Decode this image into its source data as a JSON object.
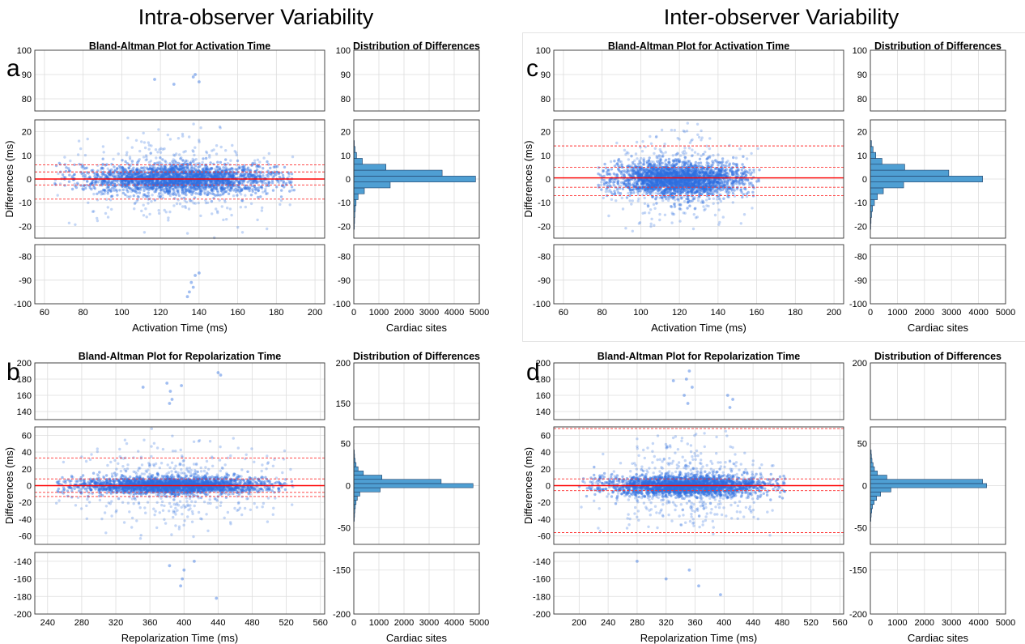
{
  "page": {
    "intra_title": "Intra-observer Variability",
    "inter_title": "Inter-observer Variability"
  },
  "colors": {
    "points": "#2f6fe0",
    "mean_line": "#ff0000",
    "limit_line": "#ff3030",
    "hist_fill": "#4f9fd3",
    "grid": "#dddddd"
  },
  "chart_data": [
    {
      "panel": "a",
      "type": "scatter",
      "title": "Bland-Altman Plot for Activation Time",
      "xlabel": "Activation Time (ms)",
      "ylabel": "Differences (ms)",
      "xlim": [
        55,
        205
      ],
      "xticks": [
        60,
        80,
        100,
        120,
        140,
        160,
        180,
        200
      ],
      "y_segments": [
        {
          "ylim": [
            75,
            100
          ],
          "ticks": [
            80,
            90,
            100
          ]
        },
        {
          "ylim": [
            -25,
            25
          ],
          "ticks": [
            -20,
            -10,
            0,
            10,
            20
          ]
        },
        {
          "ylim": [
            -100,
            -75
          ],
          "ticks": [
            -100,
            -90,
            -80
          ]
        }
      ],
      "mean_line": 0,
      "limit_lines": [
        6,
        3,
        -2.5,
        -8.5
      ],
      "point_cloud": {
        "x_range": [
          65,
          190
        ],
        "x_center": 130,
        "core_halfwidth": 3
      },
      "outliers": [
        [
          138,
          90
        ],
        [
          140,
          87
        ],
        [
          127,
          86
        ],
        [
          117,
          88
        ],
        [
          137,
          89
        ],
        [
          136,
          -91
        ],
        [
          138,
          -88
        ],
        [
          140,
          -87
        ],
        [
          135,
          -95
        ],
        [
          134,
          -97
        ],
        [
          137,
          -93
        ]
      ],
      "histogram": {
        "title": "Distribution of Differences",
        "xlabel": "Cardiac sites",
        "xlim": [
          0,
          5000
        ],
        "xticks": [
          0,
          1000,
          2000,
          3000,
          4000,
          5000
        ],
        "bin_centers": [
          -20,
          -17.5,
          -15,
          -12.5,
          -10,
          -7.5,
          -5,
          -2.5,
          0,
          2.5,
          5,
          7.5,
          10,
          12.5,
          15
        ],
        "counts": [
          20,
          30,
          40,
          60,
          90,
          170,
          420,
          1450,
          4850,
          3520,
          1280,
          340,
          110,
          50,
          20
        ]
      }
    },
    {
      "panel": "c",
      "type": "scatter",
      "title": "Bland-Altman Plot for Activation Time",
      "xlabel": "Activation Time (ms)",
      "ylabel": "Differences (ms)",
      "xlim": [
        55,
        205
      ],
      "xticks": [
        60,
        80,
        100,
        120,
        140,
        160,
        180,
        200
      ],
      "y_segments": [
        {
          "ylim": [
            75,
            100
          ],
          "ticks": [
            80,
            90,
            100
          ]
        },
        {
          "ylim": [
            -25,
            25
          ],
          "ticks": [
            -20,
            -10,
            0,
            10,
            20
          ]
        },
        {
          "ylim": [
            -100,
            -75
          ],
          "ticks": [
            -100,
            -90,
            -80
          ]
        }
      ],
      "mean_line": 0.5,
      "limit_lines": [
        14,
        5,
        -3.5,
        -7
      ],
      "point_cloud": {
        "x_range": [
          78,
          162
        ],
        "x_center": 120,
        "core_halfwidth": 3.5
      },
      "outliers": [],
      "histogram": {
        "title": "Distribution of Differences",
        "xlabel": "Cardiac sites",
        "xlim": [
          0,
          5000
        ],
        "xticks": [
          0,
          1000,
          2000,
          3000,
          4000,
          5000
        ],
        "bin_centers": [
          -20,
          -17.5,
          -15,
          -12.5,
          -10,
          -7.5,
          -5,
          -2.5,
          0,
          2.5,
          5,
          7.5,
          10,
          12.5,
          15
        ],
        "counts": [
          15,
          25,
          45,
          80,
          150,
          260,
          480,
          1230,
          4150,
          2900,
          1270,
          430,
          200,
          100,
          40
        ]
      }
    },
    {
      "panel": "b",
      "type": "scatter",
      "title": "Bland-Altman Plot for Repolarization Time",
      "xlabel": "Repolarization Time (ms)",
      "ylabel": "Differences (ms)",
      "xlim": [
        225,
        565
      ],
      "xticks": [
        240,
        280,
        320,
        360,
        400,
        440,
        480,
        520,
        560
      ],
      "y_segments": [
        {
          "ylim": [
            130,
            200
          ],
          "ticks": [
            140,
            160,
            180,
            200
          ]
        },
        {
          "ylim": [
            -70,
            70
          ],
          "ticks": [
            -60,
            -40,
            -20,
            0,
            20,
            40,
            60
          ]
        },
        {
          "ylim": [
            -200,
            -130
          ],
          "ticks": [
            -200,
            -180,
            -160,
            -140
          ]
        }
      ],
      "mean_line": 0,
      "limit_lines": [
        33,
        8,
        -8,
        -13
      ],
      "point_cloud": {
        "x_range": [
          250,
          530
        ],
        "x_center": 385,
        "core_halfwidth": 5
      },
      "outliers": [
        [
          380,
          175
        ],
        [
          384,
          165
        ],
        [
          386,
          155
        ],
        [
          383,
          150
        ],
        [
          440,
          188
        ],
        [
          443,
          185
        ],
        [
          397,
          172
        ],
        [
          352,
          170
        ],
        [
          400,
          -150
        ],
        [
          398,
          -160
        ],
        [
          396,
          -168
        ],
        [
          438,
          -182
        ],
        [
          383,
          -145
        ],
        [
          412,
          -140
        ]
      ],
      "histogram": {
        "title": "Distribution of Differences",
        "xlabel": "Cardiac sites",
        "xlim": [
          0,
          5000
        ],
        "xticks": [
          0,
          1000,
          2000,
          3000,
          4000,
          5000
        ],
        "yticks_top": [
          150,
          200
        ],
        "yticks_mid": [
          -50,
          0,
          50
        ],
        "yticks_bot": [
          -200,
          -150
        ],
        "bin_centers": [
          -40,
          -35,
          -30,
          -25,
          -20,
          -15,
          -10,
          -5,
          0,
          5,
          10,
          15,
          20,
          25,
          30,
          35,
          40
        ],
        "counts": [
          20,
          30,
          40,
          60,
          90,
          140,
          240,
          1050,
          4750,
          3480,
          1120,
          380,
          170,
          90,
          50,
          30,
          20
        ]
      }
    },
    {
      "panel": "d",
      "type": "scatter",
      "title": "Bland-Altman Plot for Repolarization Time",
      "xlabel": "Repolarization Time (ms)",
      "ylabel": "Differences (ms)",
      "xlim": [
        165,
        565
      ],
      "xticks": [
        200,
        240,
        280,
        320,
        360,
        400,
        440,
        480,
        520,
        560
      ],
      "y_segments": [
        {
          "ylim": [
            130,
            200
          ],
          "ticks": [
            140,
            160,
            180,
            200
          ]
        },
        {
          "ylim": [
            -70,
            70
          ],
          "ticks": [
            -60,
            -40,
            -20,
            0,
            20,
            40,
            60
          ]
        },
        {
          "ylim": [
            -200,
            -130
          ],
          "ticks": [
            -200,
            -180,
            -160,
            -140
          ]
        }
      ],
      "mean_line": 0,
      "limit_lines": [
        68,
        8,
        -6,
        -56
      ],
      "point_cloud": {
        "x_range": [
          200,
          485
        ],
        "x_center": 350,
        "core_halfwidth": 6
      },
      "outliers": [
        [
          352,
          190
        ],
        [
          348,
          180
        ],
        [
          356,
          170
        ],
        [
          345,
          160
        ],
        [
          350,
          150
        ],
        [
          405,
          160
        ],
        [
          412,
          155
        ],
        [
          408,
          145
        ],
        [
          330,
          178
        ],
        [
          352,
          -150
        ],
        [
          395,
          -178
        ],
        [
          365,
          -168
        ],
        [
          320,
          -160
        ],
        [
          280,
          -140
        ]
      ],
      "histogram": {
        "title": "Distribution of Differences",
        "xlabel": "Cardiac sites",
        "xlim": [
          0,
          5000
        ],
        "xticks": [
          0,
          1000,
          2000,
          3000,
          4000,
          5000
        ],
        "yticks_top": [
          200
        ],
        "yticks_mid": [
          -50,
          0,
          50
        ],
        "yticks_bot": [
          -200,
          -150
        ],
        "bin_centers": [
          -40,
          -35,
          -30,
          -25,
          -20,
          -15,
          -10,
          -5,
          0,
          5,
          10,
          15,
          20,
          25,
          30,
          35,
          40
        ],
        "counts": [
          20,
          30,
          50,
          80,
          140,
          230,
          380,
          760,
          4300,
          4150,
          610,
          260,
          150,
          100,
          60,
          40,
          30
        ]
      }
    }
  ]
}
